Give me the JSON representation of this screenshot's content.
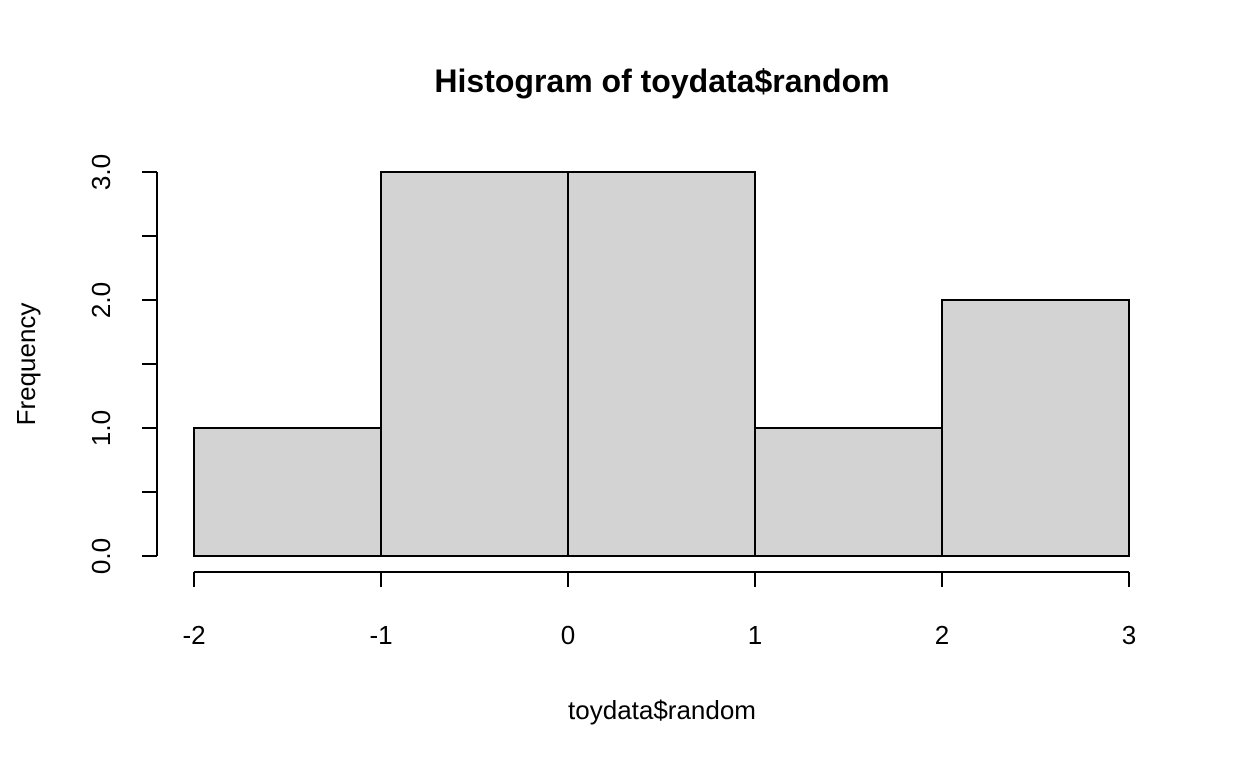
{
  "chart_data": {
    "type": "bar",
    "title": "Histogram of toydata$random",
    "xlabel": "toydata$random",
    "ylabel": "Frequency",
    "bins": [
      {
        "x0": -2,
        "x1": -1,
        "count": 1
      },
      {
        "x0": -1,
        "x1": 0,
        "count": 3
      },
      {
        "x0": 0,
        "x1": 1,
        "count": 3
      },
      {
        "x0": 1,
        "x1": 2,
        "count": 1
      },
      {
        "x0": 2,
        "x1": 3,
        "count": 2
      }
    ],
    "xlim": [
      -2,
      3
    ],
    "ylim": [
      0,
      3
    ],
    "x_ticks": [
      -2,
      -1,
      0,
      1,
      2,
      3
    ],
    "x_tick_labels": [
      "-2",
      "-1",
      "0",
      "1",
      "2",
      "3"
    ],
    "y_ticks_labeled": [
      0,
      1,
      2,
      3
    ],
    "y_tick_labels": [
      "0.0",
      "1.0",
      "2.0",
      "3.0"
    ],
    "y_ticks_minor": [
      0.5,
      1.5,
      2.5
    ],
    "bar_color": "#d3d3d3",
    "grid": false,
    "legend": "none"
  }
}
